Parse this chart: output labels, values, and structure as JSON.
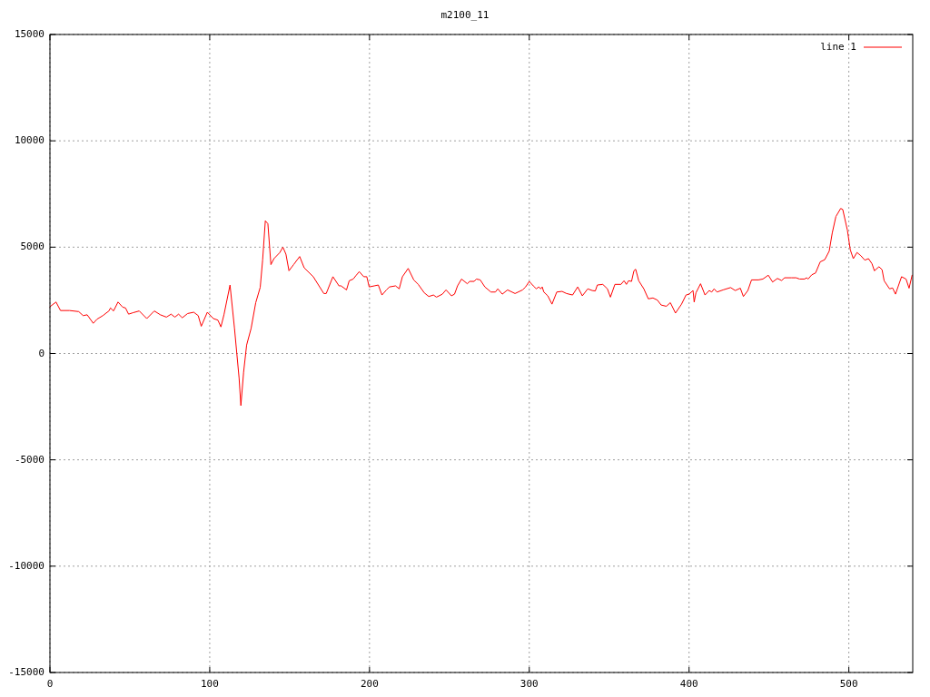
{
  "chart_data": {
    "type": "line",
    "title": "m2100_11",
    "xlim": [
      0,
      540
    ],
    "xticks": [
      0,
      100,
      200,
      300,
      400,
      500
    ],
    "ylim": [
      -15000,
      15000
    ],
    "yticks": [
      -15000,
      -10000,
      -5000,
      0,
      5000,
      10000,
      15000
    ],
    "grid": true,
    "legend": "top right",
    "line_style": "solid",
    "marker": "none",
    "series": [
      {
        "name": "line 1",
        "color": "#ff0000",
        "x": [
          0,
          3.8,
          6.6,
          12.3,
          18,
          20.8,
          23.3,
          27.1,
          29.4,
          33.1,
          36.9,
          37.9,
          39.8,
          42.6,
          45.5,
          47.3,
          49.2,
          52.1,
          55.9,
          60.6,
          65.3,
          69.1,
          72.9,
          75.8,
          78.2,
          80.5,
          82.8,
          86.2,
          90,
          92.8,
          94.7,
          98.5,
          102.3,
          105.1,
          107,
          108.9,
          112.7,
          115.5,
          118.4,
          119.5,
          121.2,
          123.1,
          125.9,
          128.8,
          131.6,
          133.1,
          134.8,
          136.4,
          138.3,
          140.2,
          143.9,
          145.8,
          147.7,
          149.6,
          152.5,
          156.3,
          159.1,
          164.8,
          171.4,
          172.9,
          177.1,
          180.9,
          182.2,
          185.6,
          187.3,
          189.8,
          191.7,
          193.6,
          196.4,
          198.3,
          199.8,
          203,
          205.5,
          207.8,
          210.6,
          212.5,
          216.3,
          218.6,
          220.6,
          224.2,
          227.7,
          230.5,
          234.3,
          237.1,
          240,
          241.9,
          245.6,
          247.9,
          251.3,
          253.2,
          255.1,
          257.6,
          261.2,
          262.7,
          265.5,
          266.9,
          269.3,
          272.2,
          276,
          278.8,
          280.3,
          283.1,
          286.4,
          291.1,
          295.8,
          297.7,
          300,
          302.5,
          304.4,
          305.9,
          307.2,
          308.1,
          309.1,
          311.6,
          314.2,
          317.2,
          320.5,
          323.3,
          327.1,
          330.3,
          333.2,
          336.6,
          339.4,
          341.3,
          342.6,
          346,
          348.9,
          350.8,
          353.6,
          357.4,
          359.3,
          360.8,
          362.1,
          364,
          365.5,
          366.6,
          368.5,
          371.7,
          374.5,
          377.4,
          380.2,
          382.5,
          385.8,
          388.3,
          391.5,
          395.3,
          398.1,
          400,
          402.5,
          403.2,
          404.3,
          407.2,
          410,
          412.6,
          414.2,
          415.7,
          417.5,
          421.3,
          426,
          428.9,
          432.1,
          434,
          436.8,
          439.1,
          443.4,
          446.2,
          449.6,
          452.3,
          455.3,
          457.9,
          459.8,
          464.2,
          467,
          469.2,
          472.3,
          473.6,
          474.5,
          476.8,
          479.2,
          482.1,
          484.9,
          487.7,
          489.6,
          491.9,
          494.9,
          496.2,
          499.1,
          500.9,
          502.8,
          505.1,
          507.5,
          510,
          512.3,
          514.5,
          516,
          518.9,
          520.8,
          522.1,
          525.5,
          527.4,
          529.2,
          533,
          535.8,
          537.7,
          539.6
        ],
        "values": [
          2200,
          2420,
          2020,
          2020,
          1970,
          1780,
          1820,
          1420,
          1610,
          1780,
          2000,
          2140,
          2000,
          2420,
          2180,
          2140,
          1850,
          1920,
          2000,
          1640,
          2000,
          1820,
          1710,
          1850,
          1710,
          1850,
          1680,
          1880,
          1940,
          1780,
          1280,
          1940,
          1640,
          1570,
          1250,
          1820,
          3220,
          1180,
          -1170,
          -2450,
          -880,
          400,
          1180,
          2390,
          3110,
          4390,
          6240,
          6100,
          4180,
          4460,
          4750,
          5000,
          4670,
          3890,
          4180,
          4560,
          4030,
          3610,
          2820,
          2820,
          3610,
          3180,
          3180,
          2990,
          3420,
          3500,
          3680,
          3850,
          3610,
          3610,
          3130,
          3180,
          3220,
          2750,
          2990,
          3130,
          3180,
          3040,
          3610,
          4000,
          3460,
          3250,
          2850,
          2680,
          2750,
          2650,
          2790,
          2990,
          2710,
          2790,
          3180,
          3500,
          3280,
          3390,
          3390,
          3500,
          3460,
          3130,
          2890,
          2890,
          3040,
          2790,
          2990,
          2820,
          2990,
          3130,
          3390,
          3180,
          3040,
          3130,
          3040,
          3130,
          2890,
          2710,
          2320,
          2890,
          2920,
          2820,
          2750,
          3130,
          2710,
          3040,
          2960,
          2940,
          3220,
          3250,
          3040,
          2650,
          3250,
          3250,
          3420,
          3250,
          3420,
          3390,
          3890,
          3960,
          3420,
          3040,
          2570,
          2610,
          2510,
          2280,
          2220,
          2390,
          1900,
          2320,
          2750,
          2790,
          2960,
          2420,
          2850,
          3280,
          2750,
          2960,
          2890,
          3040,
          2890,
          2990,
          3100,
          2960,
          3070,
          2680,
          2960,
          3460,
          3460,
          3500,
          3680,
          3360,
          3530,
          3430,
          3560,
          3560,
          3560,
          3500,
          3500,
          3560,
          3500,
          3700,
          3790,
          4310,
          4410,
          4810,
          5660,
          6440,
          6820,
          6770,
          5800,
          4880,
          4460,
          4750,
          4600,
          4390,
          4460,
          4220,
          3890,
          4080,
          3940,
          3420,
          3040,
          3080,
          2790,
          3610,
          3500,
          3070,
          3680
        ]
      }
    ]
  }
}
